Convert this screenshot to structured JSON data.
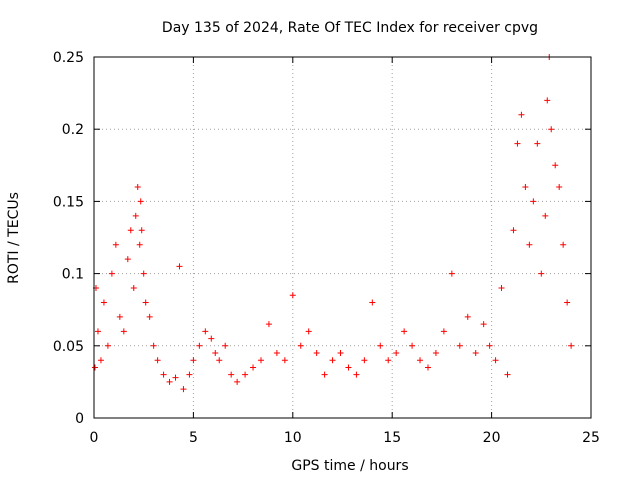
{
  "chart_data": {
    "type": "scatter",
    "title": "Day 135 of 2024, Rate Of TEC Index for receiver cpvg",
    "xlabel": "GPS time / hours",
    "ylabel": "ROTI / TECUs",
    "xlim": [
      0,
      25
    ],
    "ylim": [
      0,
      0.25
    ],
    "x_ticks": [
      0,
      5,
      10,
      15,
      20,
      25
    ],
    "x_tick_labels": [
      "0",
      "5",
      "10",
      "15",
      "20",
      "25"
    ],
    "y_ticks": [
      0,
      0.05,
      0.1,
      0.15,
      0.2,
      0.25
    ],
    "y_tick_labels": [
      "0",
      "0.05",
      "0.1",
      "0.15",
      "0.2",
      "0.25"
    ],
    "grid": true,
    "legend": "none",
    "marker": "plus",
    "color": "#ff0000",
    "series": [
      {
        "x": [
          0.05,
          0.1,
          0.2,
          0.35,
          0.5,
          0.7,
          0.9,
          1.1,
          1.3,
          1.5,
          1.7,
          1.85,
          2.0,
          2.1,
          2.2,
          2.3,
          2.35,
          2.4,
          2.5,
          2.6,
          2.8,
          3.0,
          3.2,
          3.5,
          3.8,
          4.1,
          4.3,
          4.5,
          4.8,
          5.0,
          5.3,
          5.6,
          5.9,
          6.1,
          6.3,
          6.6,
          6.9,
          7.2,
          7.6,
          8.0,
          8.4,
          8.8,
          9.2,
          9.6,
          10.0,
          10.4,
          10.8,
          11.2,
          11.6,
          12.0,
          12.4,
          12.8,
          13.2,
          13.6,
          14.0,
          14.4,
          14.8,
          15.2,
          15.6,
          16.0,
          16.4,
          16.8,
          17.2,
          17.6,
          18.0,
          18.4,
          18.8,
          19.2,
          19.6,
          19.9,
          20.2,
          20.5,
          20.8,
          21.1,
          21.3,
          21.5,
          21.7,
          21.9,
          22.1,
          22.3,
          22.5,
          22.7,
          22.8,
          22.9,
          23.0,
          23.2,
          23.4,
          23.6,
          23.8,
          24.0
        ],
        "y": [
          0.035,
          0.09,
          0.06,
          0.04,
          0.08,
          0.05,
          0.1,
          0.12,
          0.07,
          0.06,
          0.11,
          0.13,
          0.09,
          0.14,
          0.16,
          0.12,
          0.15,
          0.13,
          0.1,
          0.08,
          0.07,
          0.05,
          0.04,
          0.03,
          0.025,
          0.028,
          0.105,
          0.02,
          0.03,
          0.04,
          0.05,
          0.06,
          0.055,
          0.045,
          0.04,
          0.05,
          0.03,
          0.025,
          0.03,
          0.035,
          0.04,
          0.065,
          0.045,
          0.04,
          0.085,
          0.05,
          0.06,
          0.045,
          0.03,
          0.04,
          0.045,
          0.035,
          0.03,
          0.04,
          0.08,
          0.05,
          0.04,
          0.045,
          0.06,
          0.05,
          0.04,
          0.035,
          0.045,
          0.06,
          0.1,
          0.05,
          0.07,
          0.045,
          0.065,
          0.05,
          0.04,
          0.09,
          0.03,
          0.13,
          0.19,
          0.21,
          0.16,
          0.12,
          0.15,
          0.19,
          0.1,
          0.14,
          0.22,
          0.25,
          0.2,
          0.175,
          0.16,
          0.12,
          0.08,
          0.05
        ]
      }
    ]
  }
}
